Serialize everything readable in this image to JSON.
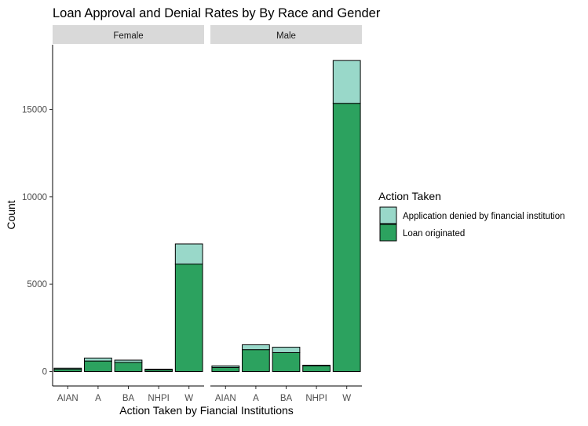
{
  "chart_data": {
    "type": "bar",
    "stacked": true,
    "title": "Loan Approval and Denial Rates by By Race and Gender",
    "xlabel": "Action Taken by Fiancial Institutions",
    "ylabel": "Count",
    "categories": [
      "AIAN",
      "A",
      "BA",
      "NHPI",
      "W"
    ],
    "ylim": [
      0,
      18000
    ],
    "yticks": [
      0,
      5000,
      10000,
      15000
    ],
    "grid": false,
    "legend": {
      "title": "Action Taken",
      "placement": "right",
      "entries": [
        "Application denied by financial institution",
        "Loan originated"
      ]
    },
    "colors": {
      "Application denied by financial institution": "#99d8c9",
      "Loan originated": "#2ca25f",
      "strip": "#d9d9d9",
      "outline": "#000000"
    },
    "facets": [
      {
        "name": "Female",
        "series": [
          {
            "name": "Loan originated",
            "values": [
              130,
              600,
              520,
              90,
              6150
            ]
          },
          {
            "name": "Application denied by financial institution",
            "values": [
              60,
              170,
              130,
              40,
              1150
            ]
          }
        ]
      },
      {
        "name": "Male",
        "series": [
          {
            "name": "Loan originated",
            "values": [
              230,
              1250,
              1080,
              330,
              15350
            ]
          },
          {
            "name": "Application denied by financial institution",
            "values": [
              90,
              280,
              310,
              30,
              2450
            ]
          }
        ]
      }
    ]
  }
}
